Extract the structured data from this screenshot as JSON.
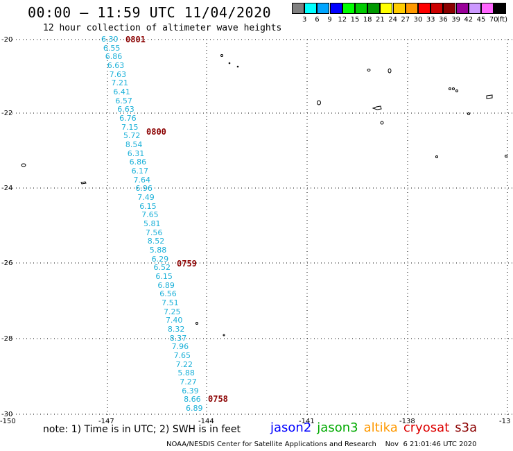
{
  "header": {
    "title": "00:00 – 11:59 UTC 11/04/2020",
    "subtitle": "12 hour collection of altimeter wave heights"
  },
  "scale": {
    "labels": [
      "3",
      "6",
      "9",
      "12",
      "15",
      "18",
      "21",
      "24",
      "27",
      "30",
      "33",
      "36",
      "39",
      "42",
      "45",
      "70"
    ],
    "unit": "(ft)",
    "colors": [
      "#808080",
      "#00ffff",
      "#00a5ff",
      "#0000ff",
      "#00ff00",
      "#00cc00",
      "#009900",
      "#ffff00",
      "#ffcc00",
      "#ff9900",
      "#ff0000",
      "#cc0000",
      "#8b0000",
      "#990099",
      "#cc99ff",
      "#ff66ff",
      "#000000"
    ]
  },
  "axes": {
    "lat_labels": [
      "-20",
      "-22",
      "-24",
      "-26",
      "-28",
      "-30"
    ],
    "lon_labels": [
      "-150",
      "-147",
      "-144",
      "-141",
      "-138",
      "-13"
    ]
  },
  "track": {
    "swh_values": [
      "6.30",
      "6.55",
      "6.86",
      "6.63",
      "7.63",
      "7.21",
      "6.41",
      "6.57",
      "6.63",
      "6.76",
      "7.15",
      "5.72",
      "8.54",
      "6.31",
      "6.86",
      "6.17",
      "7.64",
      "6.96",
      "7.49",
      "6.15",
      "7.65",
      "5.81",
      "7.56",
      "8.52",
      "5.88",
      "6.29",
      "6.52",
      "6.15",
      "6.89",
      "6.56",
      "7.51",
      "7.25",
      "7.40",
      "8.32",
      "8.37",
      "7.96",
      "7.65",
      "7.22",
      "5.88",
      "7.27",
      "6.39",
      "8.66",
      "6.89"
    ],
    "times": [
      "0801",
      "0800",
      "0759",
      "0758"
    ],
    "color": "#1ab0d8"
  },
  "note": "note:  1) Time is in UTC;  2) SWH is in feet",
  "legend": [
    {
      "name": "jason2",
      "color": "#0000ff"
    },
    {
      "name": "jason3",
      "color": "#00aa00"
    },
    {
      "name": "altika",
      "color": "#ff9900"
    },
    {
      "name": "cryosat",
      "color": "#dd0000"
    },
    {
      "name": "s3a",
      "color": "#8b0000"
    }
  ],
  "credit": "NOAA/NESDIS Center for Satellite Applications and Research    Nov  6 21:01:46 UTC 2020"
}
